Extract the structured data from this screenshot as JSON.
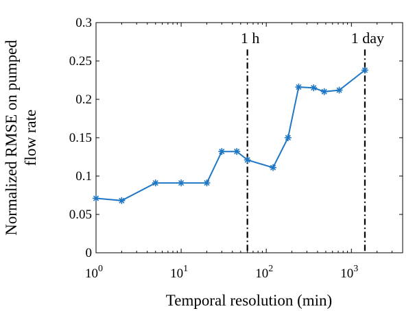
{
  "chart_data": {
    "type": "line",
    "x_scale": "log",
    "xlim": [
      1,
      4000
    ],
    "ylim": [
      0,
      0.3
    ],
    "xlabel": "Temporal resolution (min)",
    "ylabel_lines": [
      "Normalized RMSE on pumped",
      "flow rate"
    ],
    "x_ticks": [
      {
        "value": 1,
        "base": "10",
        "exp": "0"
      },
      {
        "value": 10,
        "base": "10",
        "exp": "1"
      },
      {
        "value": 100,
        "base": "10",
        "exp": "2"
      },
      {
        "value": 1000,
        "base": "10",
        "exp": "3"
      }
    ],
    "y_ticks": [
      {
        "value": 0,
        "label": "0"
      },
      {
        "value": 0.05,
        "label": "0.05"
      },
      {
        "value": 0.1,
        "label": "0.1"
      },
      {
        "value": 0.15,
        "label": "0.15"
      },
      {
        "value": 0.2,
        "label": "0.2"
      },
      {
        "value": 0.25,
        "label": "0.25"
      },
      {
        "value": 0.3,
        "label": "0.3"
      }
    ],
    "grid": false,
    "series": [
      {
        "color": "#1f77c4",
        "marker": "*",
        "x": [
          1,
          2,
          5,
          10,
          20,
          30,
          45,
          60,
          120,
          180,
          240,
          360,
          480,
          720,
          1440
        ],
        "y": [
          0.071,
          0.068,
          0.091,
          0.091,
          0.091,
          0.132,
          0.132,
          0.121,
          0.111,
          0.15,
          0.216,
          0.215,
          0.21,
          0.212,
          0.238
        ]
      }
    ],
    "annotations": [
      {
        "x": 60,
        "label": "1 h"
      },
      {
        "x": 1440,
        "label": "1 day"
      }
    ]
  }
}
